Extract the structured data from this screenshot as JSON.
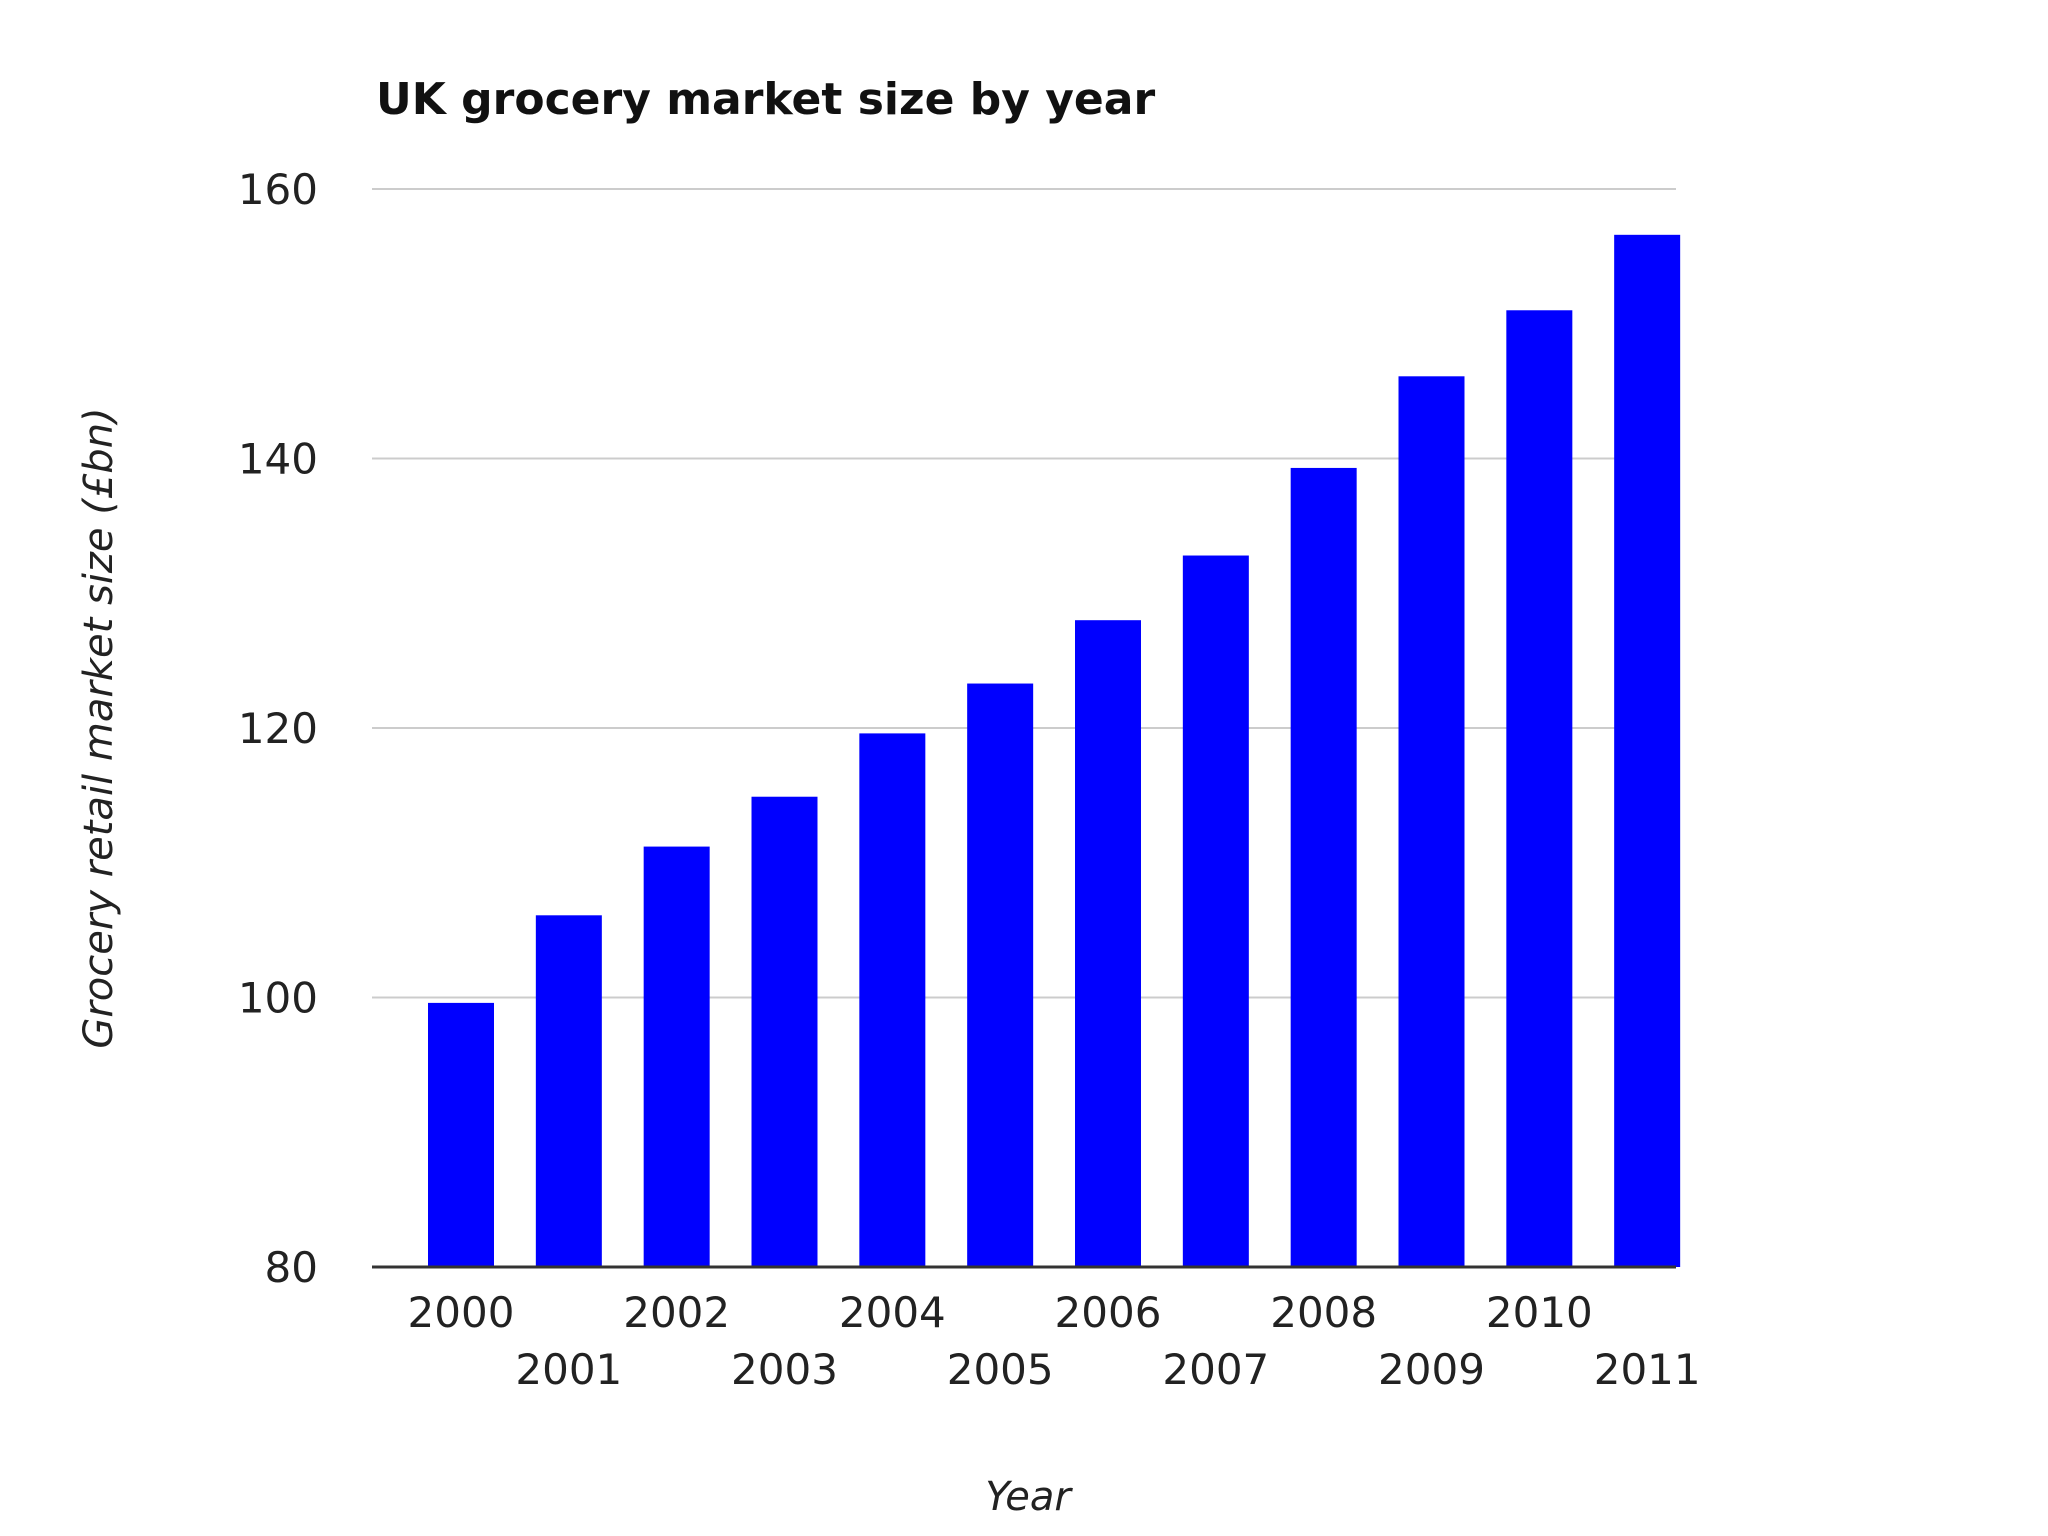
{
  "chart_data": {
    "type": "bar",
    "title": "UK grocery market size by year",
    "xlabel": "Year",
    "ylabel": "Grocery retail market size (£bn)",
    "categories": [
      "2000",
      "2001",
      "2002",
      "2003",
      "2004",
      "2005",
      "2006",
      "2007",
      "2008",
      "2009",
      "2010",
      "2011"
    ],
    "values": [
      99.6,
      106.1,
      111.2,
      114.9,
      119.6,
      123.3,
      128.0,
      132.8,
      139.3,
      146.1,
      151.0,
      156.6
    ],
    "ylim": [
      80,
      160
    ],
    "yticks": [
      80,
      100,
      120,
      140,
      160
    ],
    "grid": true,
    "legend": "none",
    "bar_color": "#0000ff",
    "grid_color": "#cccccc",
    "axis_color": "#333333"
  }
}
